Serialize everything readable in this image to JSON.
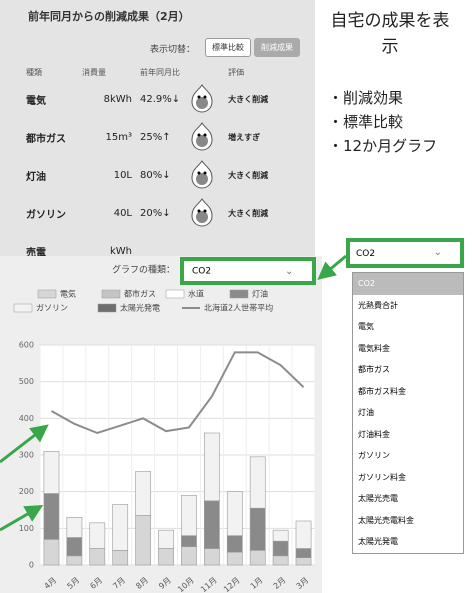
{
  "panel": {
    "title": "前年同月からの削減成果（2月）",
    "switch_label": "表示切替：",
    "buttons": [
      "標準比較",
      "削減成果"
    ],
    "table": {
      "headers": [
        "種類",
        "消費量",
        "前年同月比",
        "評価"
      ],
      "rows": [
        [
          "電気",
          "8kWh",
          "42.9%↓",
          "大きく削減"
        ],
        [
          "都市ガス",
          "15m³",
          "25%↑",
          "増えすぎ"
        ],
        [
          "灯油",
          "10L",
          "80%↓",
          "大きく削減"
        ],
        [
          "ガソリン",
          "40L",
          "20%↓",
          "大きく削減"
        ],
        [
          "売電",
          "kWh",
          "",
          ""
        ]
      ]
    }
  },
  "sidebar": {
    "heading": "自宅の成果を表示",
    "bullets": [
      "・削減効果",
      "・標準比較",
      "・12か月グラフ"
    ]
  },
  "dropdown": {
    "selected": "CO2",
    "options": [
      "CO2",
      "光熱費合計",
      "電気",
      "電気料金",
      "都市ガス",
      "都市ガス料金",
      "灯油",
      "灯油料金",
      "ガソリン",
      "ガソリン料金",
      "太陽光売電",
      "太陽光売電料金",
      "太陽光発電"
    ]
  },
  "chart_data": {
    "type": "bar",
    "select_label": "グラフの種類：",
    "select_value": "CO2",
    "categories": [
      "4月",
      "5月",
      "6月",
      "7月",
      "8月",
      "9月",
      "10月",
      "11月",
      "12月",
      "1月",
      "2月",
      "3月"
    ],
    "ylim": [
      0,
      600
    ],
    "yticks": [
      0,
      100,
      200,
      300,
      400,
      500,
      600
    ],
    "grid": true,
    "series": [
      {
        "name": "電気",
        "color": "#d6d6d6",
        "values": [
          70,
          25,
          45,
          40,
          135,
          45,
          50,
          45,
          35,
          40,
          25,
          20
        ]
      },
      {
        "name": "都市ガス",
        "color": "#c4c4c4",
        "values": [
          0,
          0,
          0,
          0,
          0,
          0,
          0,
          0,
          0,
          0,
          0,
          0
        ]
      },
      {
        "name": "水道",
        "color": "#ffffff",
        "values": [
          0,
          0,
          0,
          0,
          0,
          0,
          0,
          0,
          0,
          0,
          0,
          0
        ]
      },
      {
        "name": "灯油",
        "color": "#8a8a8a",
        "values": [
          125,
          50,
          0,
          0,
          0,
          0,
          30,
          130,
          45,
          115,
          40,
          25
        ]
      },
      {
        "name": "ガソリン",
        "color": "#f2f2f2",
        "values": [
          115,
          55,
          70,
          125,
          120,
          50,
          110,
          185,
          120,
          140,
          30,
          75
        ]
      },
      {
        "name": "太陽光発電",
        "color": "#6e6e6e",
        "values": [
          0,
          0,
          0,
          0,
          0,
          0,
          0,
          0,
          0,
          0,
          0,
          0
        ]
      },
      {
        "name": "北海道2人世帯平均",
        "type": "line",
        "color": "#8c8c8c",
        "values": [
          420,
          385,
          360,
          380,
          400,
          365,
          375,
          460,
          580,
          580,
          545,
          485
        ]
      }
    ]
  }
}
